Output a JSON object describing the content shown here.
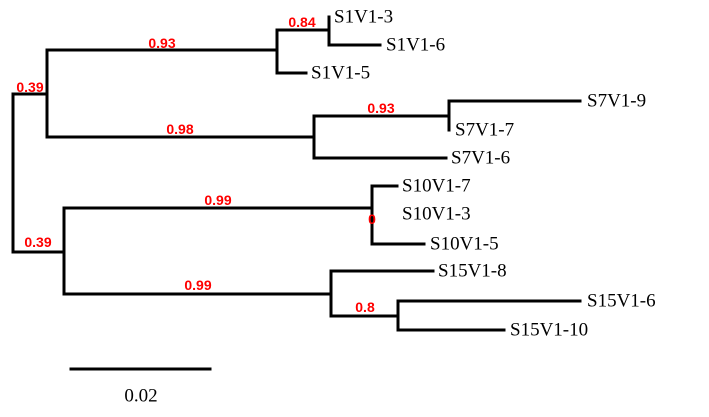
{
  "tree": {
    "leaves": [
      {
        "id": "l1",
        "label": "S1V1-3"
      },
      {
        "id": "l2",
        "label": "S1V1-6"
      },
      {
        "id": "l3",
        "label": "S1V1-5"
      },
      {
        "id": "l4",
        "label": "S7V1-9"
      },
      {
        "id": "l5",
        "label": "S7V1-7"
      },
      {
        "id": "l6",
        "label": "S7V1-6"
      },
      {
        "id": "l7",
        "label": "S10V1-7"
      },
      {
        "id": "l8",
        "label": "S10V1-3"
      },
      {
        "id": "l9",
        "label": "S10V1-5"
      },
      {
        "id": "l10",
        "label": "S15V1-8"
      },
      {
        "id": "l11",
        "label": "S15V1-6"
      },
      {
        "id": "l12",
        "label": "S15V1-10"
      }
    ],
    "support_values": [
      {
        "id": "b1",
        "value": "0.84"
      },
      {
        "id": "b2",
        "value": "0.93"
      },
      {
        "id": "b3",
        "value": "0.39"
      },
      {
        "id": "b4",
        "value": "0.93"
      },
      {
        "id": "b5",
        "value": "0.98"
      },
      {
        "id": "b6",
        "value": "0.99"
      },
      {
        "id": "b7",
        "value": "0"
      },
      {
        "id": "b8",
        "value": "0.39"
      },
      {
        "id": "b9",
        "value": "0.99"
      },
      {
        "id": "b10",
        "value": "0.8"
      }
    ],
    "scale_bar": {
      "label": "0.02"
    },
    "colors": {
      "branch": "#000000",
      "support": "#ff0000",
      "leaf_text": "#000000"
    }
  }
}
